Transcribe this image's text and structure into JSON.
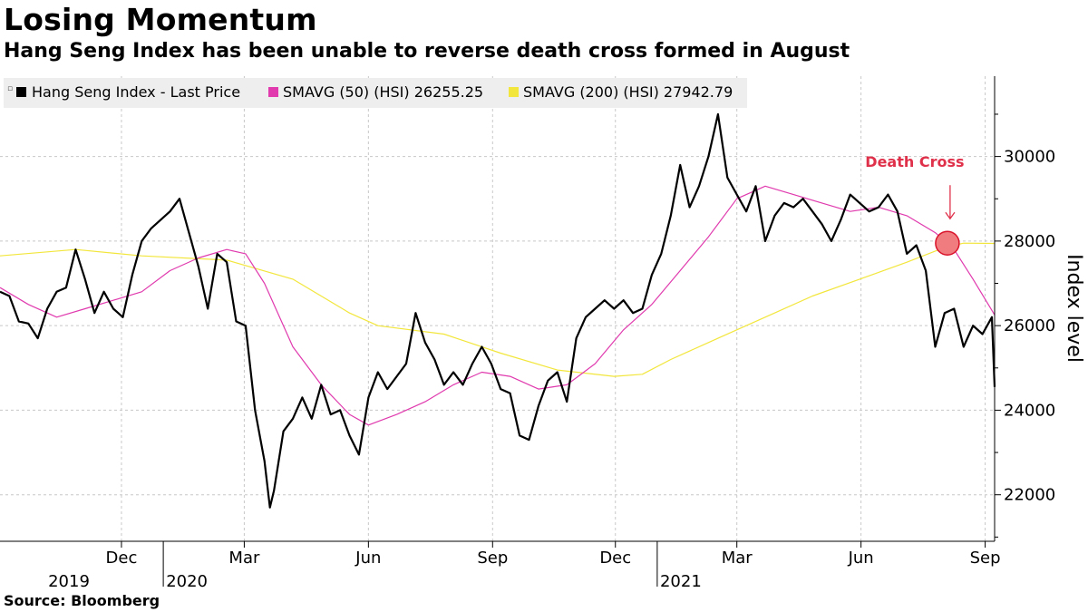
{
  "title": "Losing Momentum",
  "subtitle": "Hang Seng Index has been unable to reverse death cross formed in August",
  "source": "Source: Bloomberg",
  "chart_data": {
    "type": "line",
    "ylabel": "Index level",
    "ylim": [
      20900,
      31900
    ],
    "yticks": [
      22000,
      24000,
      26000,
      28000,
      30000
    ],
    "xrange": [
      "2019-09-02",
      "2021-09-08"
    ],
    "month_ticks": [
      {
        "date": "2019-12-01",
        "label": "Dec"
      },
      {
        "date": "2020-03-01",
        "label": "Mar"
      },
      {
        "date": "2020-06-01",
        "label": "Jun"
      },
      {
        "date": "2020-09-01",
        "label": "Sep"
      },
      {
        "date": "2020-12-01",
        "label": "Dec"
      },
      {
        "date": "2021-03-01",
        "label": "Mar"
      },
      {
        "date": "2021-06-01",
        "label": "Jun"
      },
      {
        "date": "2021-09-01",
        "label": "Sep"
      }
    ],
    "year_ticks": [
      {
        "date": "2019-09-01",
        "label": "2019"
      },
      {
        "date": "2020-01-01",
        "label": "2020"
      },
      {
        "date": "2021-01-01",
        "label": "2021"
      }
    ],
    "grid": true,
    "legend_position": "top-left",
    "annotation": {
      "text": "Death Cross",
      "date": "2021-08-04",
      "value": 27950
    },
    "series": [
      {
        "name": "Hang Seng Index - Last Price",
        "color": "#000000",
        "points": [
          [
            "2019-09-02",
            26800
          ],
          [
            "2019-09-09",
            26700
          ],
          [
            "2019-09-16",
            26100
          ],
          [
            "2019-09-23",
            26050
          ],
          [
            "2019-09-30",
            25700
          ],
          [
            "2019-10-07",
            26400
          ],
          [
            "2019-10-14",
            26800
          ],
          [
            "2019-10-21",
            26900
          ],
          [
            "2019-10-28",
            27800
          ],
          [
            "2019-11-04",
            27100
          ],
          [
            "2019-11-11",
            26300
          ],
          [
            "2019-11-18",
            26800
          ],
          [
            "2019-11-25",
            26400
          ],
          [
            "2019-12-02",
            26200
          ],
          [
            "2019-12-09",
            27200
          ],
          [
            "2019-12-16",
            28000
          ],
          [
            "2019-12-23",
            28300
          ],
          [
            "2019-12-30",
            28500
          ],
          [
            "2020-01-06",
            28700
          ],
          [
            "2020-01-13",
            29000
          ],
          [
            "2020-01-20",
            28200
          ],
          [
            "2020-01-27",
            27400
          ],
          [
            "2020-02-03",
            26400
          ],
          [
            "2020-02-10",
            27700
          ],
          [
            "2020-02-17",
            27500
          ],
          [
            "2020-02-24",
            26100
          ],
          [
            "2020-03-02",
            26000
          ],
          [
            "2020-03-09",
            24000
          ],
          [
            "2020-03-16",
            22800
          ],
          [
            "2020-03-20",
            21700
          ],
          [
            "2020-03-23",
            22100
          ],
          [
            "2020-03-30",
            23500
          ],
          [
            "2020-04-06",
            23800
          ],
          [
            "2020-04-13",
            24300
          ],
          [
            "2020-04-20",
            23800
          ],
          [
            "2020-04-27",
            24600
          ],
          [
            "2020-05-04",
            23900
          ],
          [
            "2020-05-11",
            24000
          ],
          [
            "2020-05-18",
            23400
          ],
          [
            "2020-05-25",
            22950
          ],
          [
            "2020-06-01",
            24300
          ],
          [
            "2020-06-08",
            24900
          ],
          [
            "2020-06-15",
            24500
          ],
          [
            "2020-06-22",
            24800
          ],
          [
            "2020-06-29",
            25100
          ],
          [
            "2020-07-06",
            26300
          ],
          [
            "2020-07-13",
            25600
          ],
          [
            "2020-07-20",
            25200
          ],
          [
            "2020-07-27",
            24600
          ],
          [
            "2020-08-03",
            24900
          ],
          [
            "2020-08-10",
            24600
          ],
          [
            "2020-08-17",
            25100
          ],
          [
            "2020-08-24",
            25500
          ],
          [
            "2020-08-31",
            25100
          ],
          [
            "2020-09-07",
            24500
          ],
          [
            "2020-09-14",
            24400
          ],
          [
            "2020-09-21",
            23400
          ],
          [
            "2020-09-28",
            23300
          ],
          [
            "2020-10-05",
            24100
          ],
          [
            "2020-10-12",
            24700
          ],
          [
            "2020-10-19",
            24900
          ],
          [
            "2020-10-26",
            24200
          ],
          [
            "2020-11-02",
            25700
          ],
          [
            "2020-11-09",
            26200
          ],
          [
            "2020-11-16",
            26400
          ],
          [
            "2020-11-23",
            26600
          ],
          [
            "2020-11-30",
            26400
          ],
          [
            "2020-12-07",
            26600
          ],
          [
            "2020-12-14",
            26300
          ],
          [
            "2020-12-21",
            26400
          ],
          [
            "2020-12-28",
            27200
          ],
          [
            "2021-01-04",
            27700
          ],
          [
            "2021-01-11",
            28600
          ],
          [
            "2021-01-18",
            29800
          ],
          [
            "2021-01-25",
            28800
          ],
          [
            "2021-02-01",
            29300
          ],
          [
            "2021-02-08",
            30000
          ],
          [
            "2021-02-15",
            31000
          ],
          [
            "2021-02-22",
            29500
          ],
          [
            "2021-03-01",
            29100
          ],
          [
            "2021-03-08",
            28700
          ],
          [
            "2021-03-15",
            29300
          ],
          [
            "2021-03-22",
            28000
          ],
          [
            "2021-03-29",
            28600
          ],
          [
            "2021-04-05",
            28900
          ],
          [
            "2021-04-12",
            28800
          ],
          [
            "2021-04-19",
            29000
          ],
          [
            "2021-04-26",
            28700
          ],
          [
            "2021-05-03",
            28400
          ],
          [
            "2021-05-10",
            28000
          ],
          [
            "2021-05-17",
            28500
          ],
          [
            "2021-05-24",
            29100
          ],
          [
            "2021-05-31",
            28900
          ],
          [
            "2021-06-07",
            28700
          ],
          [
            "2021-06-14",
            28800
          ],
          [
            "2021-06-21",
            29100
          ],
          [
            "2021-06-28",
            28700
          ],
          [
            "2021-07-05",
            27700
          ],
          [
            "2021-07-12",
            27900
          ],
          [
            "2021-07-19",
            27300
          ],
          [
            "2021-07-26",
            25500
          ],
          [
            "2021-08-02",
            26300
          ],
          [
            "2021-08-09",
            26400
          ],
          [
            "2021-08-16",
            25500
          ],
          [
            "2021-08-23",
            26000
          ],
          [
            "2021-08-30",
            25800
          ],
          [
            "2021-09-06",
            26200
          ],
          [
            "2021-09-08",
            24550
          ]
        ]
      },
      {
        "name": "SMAVG (50) (HSI) 26255.25",
        "color": "#e03aae",
        "points": [
          [
            "2019-09-02",
            26900
          ],
          [
            "2019-09-23",
            26500
          ],
          [
            "2019-10-14",
            26200
          ],
          [
            "2019-11-04",
            26400
          ],
          [
            "2019-11-25",
            26600
          ],
          [
            "2019-12-16",
            26800
          ],
          [
            "2020-01-06",
            27300
          ],
          [
            "2020-01-27",
            27600
          ],
          [
            "2020-02-17",
            27800
          ],
          [
            "2020-03-02",
            27700
          ],
          [
            "2020-03-16",
            27000
          ],
          [
            "2020-04-06",
            25500
          ],
          [
            "2020-04-27",
            24600
          ],
          [
            "2020-05-18",
            23900
          ],
          [
            "2020-06-01",
            23650
          ],
          [
            "2020-06-22",
            23900
          ],
          [
            "2020-07-13",
            24200
          ],
          [
            "2020-08-03",
            24600
          ],
          [
            "2020-08-24",
            24900
          ],
          [
            "2020-09-14",
            24800
          ],
          [
            "2020-10-05",
            24500
          ],
          [
            "2020-10-26",
            24600
          ],
          [
            "2020-11-16",
            25100
          ],
          [
            "2020-12-07",
            25900
          ],
          [
            "2020-12-28",
            26500
          ],
          [
            "2021-01-18",
            27300
          ],
          [
            "2021-02-08",
            28100
          ],
          [
            "2021-03-01",
            29000
          ],
          [
            "2021-03-22",
            29300
          ],
          [
            "2021-04-12",
            29100
          ],
          [
            "2021-05-03",
            28900
          ],
          [
            "2021-05-24",
            28700
          ],
          [
            "2021-06-14",
            28800
          ],
          [
            "2021-07-05",
            28600
          ],
          [
            "2021-07-26",
            28200
          ],
          [
            "2021-08-09",
            27800
          ],
          [
            "2021-08-23",
            27100
          ],
          [
            "2021-09-08",
            26255
          ]
        ]
      },
      {
        "name": "SMAVG (200) (HSI) 27942.79",
        "color": "#f2e63c",
        "points": [
          [
            "2019-09-02",
            27650
          ],
          [
            "2019-10-28",
            27800
          ],
          [
            "2019-12-16",
            27650
          ],
          [
            "2020-02-17",
            27550
          ],
          [
            "2020-04-06",
            27100
          ],
          [
            "2020-05-18",
            26300
          ],
          [
            "2020-06-08",
            26000
          ],
          [
            "2020-07-27",
            25800
          ],
          [
            "2020-09-07",
            25350
          ],
          [
            "2020-10-19",
            24950
          ],
          [
            "2020-11-30",
            24800
          ],
          [
            "2020-12-21",
            24850
          ],
          [
            "2021-01-11",
            25200
          ],
          [
            "2021-02-15",
            25700
          ],
          [
            "2021-03-22",
            26200
          ],
          [
            "2021-04-26",
            26700
          ],
          [
            "2021-05-31",
            27100
          ],
          [
            "2021-07-05",
            27500
          ],
          [
            "2021-08-02",
            27850
          ],
          [
            "2021-08-16",
            27950
          ],
          [
            "2021-09-08",
            27943
          ]
        ]
      }
    ]
  }
}
